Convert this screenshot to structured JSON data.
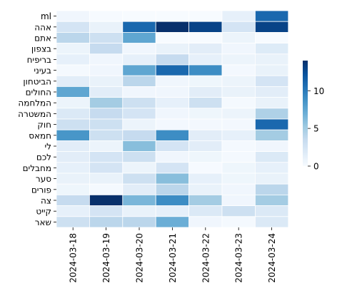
{
  "chart_data": {
    "type": "heatmap",
    "title": "",
    "xlabel": "",
    "ylabel": "",
    "x": [
      "2024-03-18",
      "2024-03-19",
      "2024-03-20",
      "2024-03-21",
      "2024-03-22",
      "2024-03-23",
      "2024-03-24"
    ],
    "y": [
      "ml",
      "אהה",
      "אתם",
      "בצפון",
      "בריפיח",
      "בעיני",
      "הביטחון",
      "החולים",
      "המלחמה",
      "המשטרה",
      "חוק",
      "חמאס",
      "לי",
      "לכם",
      "מחבלים",
      "סער",
      "פורים",
      "צה",
      "קייט",
      "שאר"
    ],
    "values": [
      [
        0.5,
        0.1,
        0,
        0,
        0,
        1.2,
        11
      ],
      [
        2.5,
        1.0,
        11,
        14,
        13,
        2.5,
        13
      ],
      [
        4.0,
        3.0,
        7.5,
        0,
        0,
        0.8,
        0
      ],
      [
        0.8,
        3.5,
        0.5,
        1.0,
        1.5,
        0.5,
        1.8
      ],
      [
        1.2,
        0.5,
        1.2,
        3.5,
        1.2,
        0.8,
        1.0
      ],
      [
        0.2,
        0.5,
        7.5,
        11,
        9.0,
        0.3,
        1.0
      ],
      [
        1.5,
        1.0,
        4.0,
        0.5,
        0.6,
        0.8,
        2.5
      ],
      [
        7.5,
        1.5,
        0.5,
        0.5,
        1.5,
        1.0,
        1.5
      ],
      [
        0.8,
        5.0,
        3.0,
        1.2,
        3.0,
        0.2,
        1.0
      ],
      [
        2.0,
        3.5,
        2.5,
        0.5,
        0.6,
        0.8,
        4.5
      ],
      [
        3.0,
        3.0,
        0.8,
        0.3,
        0.3,
        0.3,
        11
      ],
      [
        8.5,
        3.0,
        3.5,
        9.0,
        1.5,
        1.2,
        5.0
      ],
      [
        1.5,
        0.8,
        6.0,
        2.5,
        1.5,
        0.2,
        0.5
      ],
      [
        1.5,
        2.5,
        3.0,
        0.5,
        0.6,
        0.2,
        2.0
      ],
      [
        1.2,
        2.5,
        0.8,
        2.5,
        0.1,
        0.6,
        1.2
      ],
      [
        1.0,
        1.0,
        3.0,
        6.0,
        1.2,
        0.6,
        1.0
      ],
      [
        0.6,
        0.2,
        1.5,
        4.0,
        1.0,
        0.5,
        4.0
      ],
      [
        3.5,
        14,
        6.5,
        9.0,
        5.0,
        0.5,
        5.0
      ],
      [
        1.2,
        2.5,
        1.0,
        1.2,
        2.0,
        3.0,
        2.0
      ],
      [
        3.0,
        4.0,
        4.0,
        7.0,
        0.5,
        0.2,
        2.0
      ]
    ],
    "colorbar": {
      "min": 0,
      "max": 14,
      "ticks": [
        0,
        5,
        10
      ],
      "colormap": "Blues"
    },
    "grid": false,
    "legend": "colorbar-right"
  }
}
